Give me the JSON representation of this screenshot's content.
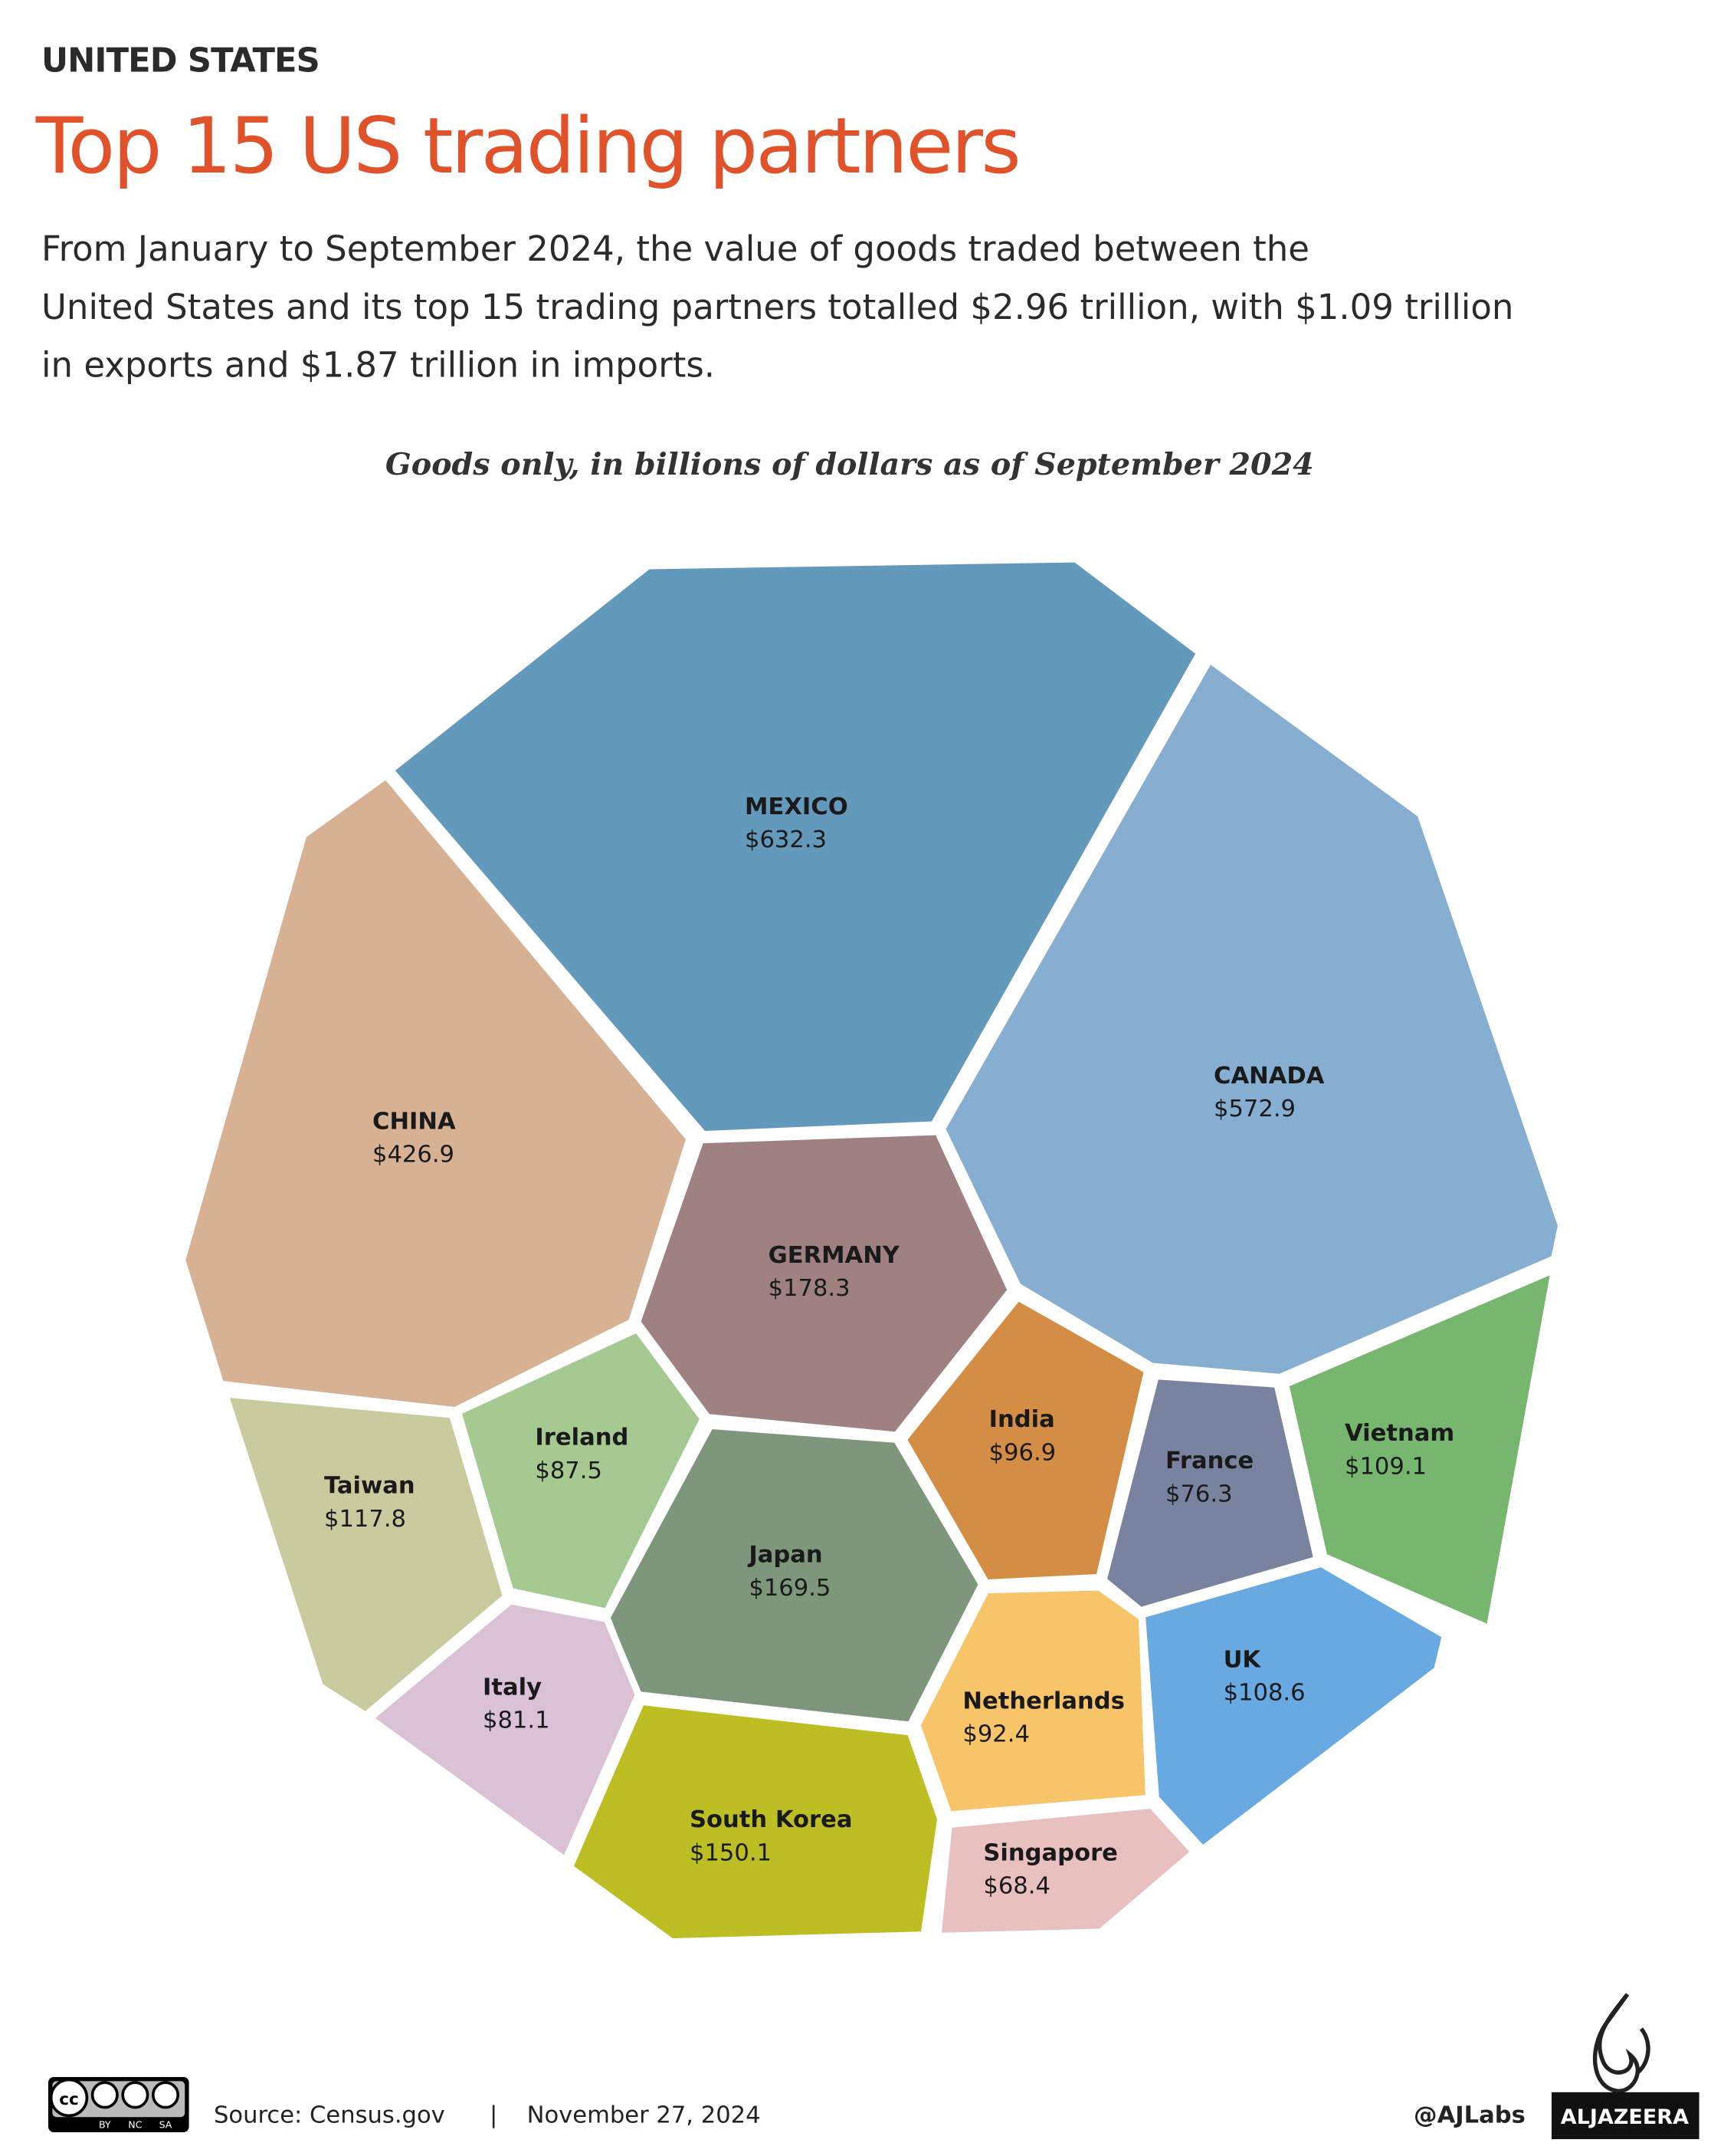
{
  "kicker": "UNITED STATES",
  "subtitle_lines": [
    "From January to September 2024, the value of goods traded between the",
    "United States and its top 15 trading partners totalled $2.96 trillion, with $1.09 trillion",
    "in exports and $1.87 trillion in imports."
  ],
  "chart_data": {
    "type": "voronoi",
    "title": "Top 15 US trading partners",
    "note": "Goods only, in billions of dollars as of September 2024",
    "categories": [
      "MEXICO",
      "CANADA",
      "CHINA",
      "GERMANY",
      "Ireland",
      "Taiwan",
      "Japan",
      "India",
      "France",
      "Vietnam",
      "UK",
      "Netherlands",
      "Italy",
      "South Korea",
      "Singapore"
    ],
    "values": [
      632.3,
      572.9,
      426.9,
      178.3,
      87.5,
      117.8,
      169.5,
      96.9,
      76.3,
      109.1,
      108.6,
      92.4,
      81.1,
      150.1,
      68.4
    ],
    "value_labels": [
      "$632.3",
      "$572.9",
      "$426.9",
      "$178.3",
      "$87.5",
      "$117.8",
      "$169.5",
      "$96.9",
      "$76.3",
      "$109.1",
      "$108.6",
      "$92.4",
      "$81.1",
      "$150.1",
      "$68.4"
    ],
    "colors": [
      "#6399bb",
      "#86aed1",
      "#d6b194",
      "#a08181",
      "#a6c992",
      "#c9cb9f",
      "#7e967c",
      "#d48d44",
      "#79839f",
      "#76b66e",
      "#68a9e2",
      "#f8c46a",
      "#dbc1d6",
      "#bdbd24",
      "#e8c0c0"
    ]
  },
  "license": [
    "BY",
    "NC",
    "SA"
  ],
  "source": "Source:  Census.gov",
  "separator": "|",
  "date": "November 27, 2024",
  "credit": "@AJLabs",
  "brand": "ALJAZEERA"
}
